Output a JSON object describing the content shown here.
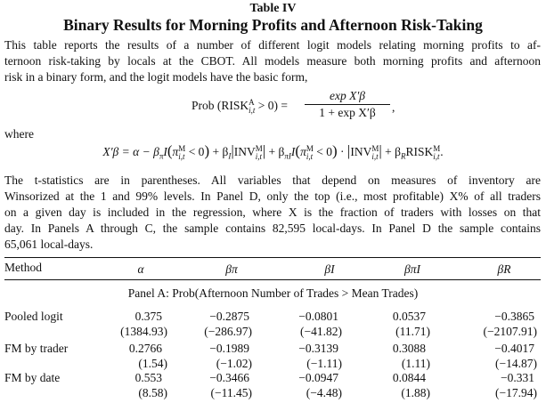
{
  "table": {
    "number": "Table IV",
    "title": "Binary Results for Morning Profits and Afternoon Risk-Taking"
  },
  "intro": {
    "lines": [
      "This table reports the results of a number of different logit models relating morning profits to af-",
      "ternoon risk-taking by locals at the CBOT. All models measure both morning profits and afternoon",
      "risk in a binary form, and the logit models have the basic form,"
    ]
  },
  "formula1": {
    "lhs_prefix": "Prob (RISK",
    "lhs_sup": "A",
    "lhs_sub": "i,t",
    "lhs_suffix": " > 0) =",
    "numerator": "exp X′β",
    "denominator": "1 + exp X′β",
    "comma": ","
  },
  "where": "where",
  "formula2": {
    "text_a": "X′β = α − β",
    "sub_pi": "π",
    "text_b": "I",
    "pi": "π",
    "sup_m": "M",
    "sub_it": "i,t",
    "lt0": " < 0",
    "plus_bi": " + β",
    "sub_i": "I",
    "inv": "INV",
    "plus_bpii": " + β",
    "sub_pii": "πI",
    "text_i": "I",
    "dot": " · ",
    "plus_br": " + β",
    "sub_r": "R",
    "risk": "RISK",
    "period": "."
  },
  "notes": {
    "lines": [
      "The t-statistics are in parentheses. All variables that depend on measures of inventory are",
      "Winsorized at the 1 and 99% levels. In Panel D, only the top (i.e., most profitable) X% of all traders",
      "on a given day is included in the regression, where X is the fraction of traders with losses on that",
      "day. In Panels A through C, the sample contains 82,595 local-days. In Panel D the sample contains",
      "65,061 local-days."
    ]
  },
  "columns": {
    "method": "Method",
    "alpha": "α",
    "beta_pi": "βπ",
    "beta_i": "βI",
    "beta_pii": "βπI",
    "beta_r": "βR"
  },
  "panel_a": {
    "title": "Panel A: Prob(Afternoon Number of Trades > Mean Trades)",
    "rows": [
      {
        "method": "Pooled logit",
        "est": [
          "0.375",
          "−0.2875",
          "−0.0801",
          "0.0537",
          "−0.3865"
        ],
        "tstat": [
          "(1384.93)",
          "(−286.97)",
          "(−41.82)",
          "(11.71)",
          "(−2107.91)"
        ]
      },
      {
        "method": "FM by trader",
        "est": [
          "0.2766",
          "−0.1989",
          "−0.3139",
          "0.3088",
          "−0.4017"
        ],
        "tstat": [
          "(1.54)",
          "(−1.02)",
          "(−1.11)",
          "(1.11)",
          "(−14.87)"
        ]
      },
      {
        "method": "FM by date",
        "est": [
          "0.553",
          "−0.3466",
          "−0.0947",
          "0.0844",
          "−0.331"
        ],
        "tstat": [
          "(8.58)",
          "(−11.45)",
          "(−4.48)",
          "(1.88)",
          "(−17.94)"
        ]
      }
    ]
  }
}
